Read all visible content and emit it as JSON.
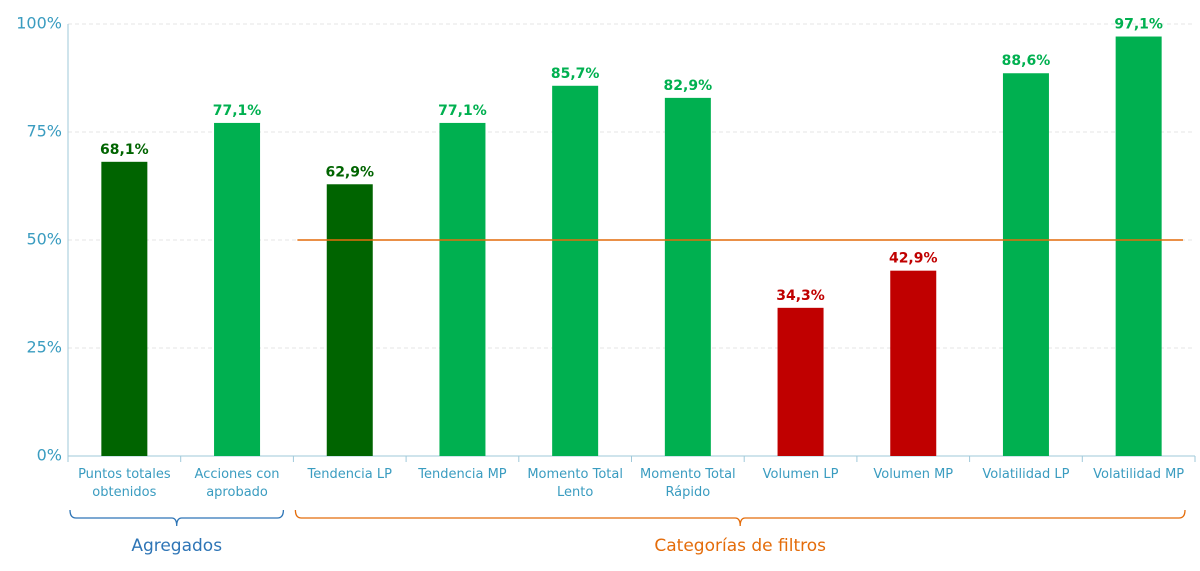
{
  "chart_data": {
    "type": "bar",
    "categories": [
      "Puntos totales obtenidos",
      "Acciones con aprobado",
      "Tendencia LP",
      "Tendencia MP",
      "Momento Total Lento",
      "Momento Total Rápido",
      "Volumen LP",
      "Volumen MP",
      "Volatilidad LP",
      "Volatilidad MP"
    ],
    "values": [
      68.1,
      77.1,
      62.9,
      77.1,
      85.7,
      82.9,
      34.3,
      42.9,
      88.6,
      97.1
    ],
    "value_labels": [
      "68,1%",
      "77,1%",
      "62,9%",
      "77,1%",
      "85,7%",
      "82,9%",
      "34,3%",
      "42,9%",
      "88,6%",
      "97,1%"
    ],
    "colors": [
      "#006400",
      "#00b050",
      "#006400",
      "#00b050",
      "#00b050",
      "#00b050",
      "#c00000",
      "#c00000",
      "#00b050",
      "#00b050"
    ],
    "ylim": [
      0,
      100
    ],
    "yticks": [
      {
        "value": 0,
        "label": "0%"
      },
      {
        "value": 25,
        "label": "25%"
      },
      {
        "value": 50,
        "label": "50%"
      },
      {
        "value": 75,
        "label": "75%"
      },
      {
        "value": 100,
        "label": "100%"
      }
    ],
    "grid": true,
    "reference_line": {
      "value": 50,
      "color": "#e46c0a",
      "start": 2
    },
    "groups": [
      {
        "name": "Agregados",
        "start": 0,
        "end": 1,
        "color": "#2e75b6"
      },
      {
        "name": "Categorías de filtros",
        "start": 2,
        "end": 9,
        "color": "#e46c0a"
      }
    ]
  }
}
